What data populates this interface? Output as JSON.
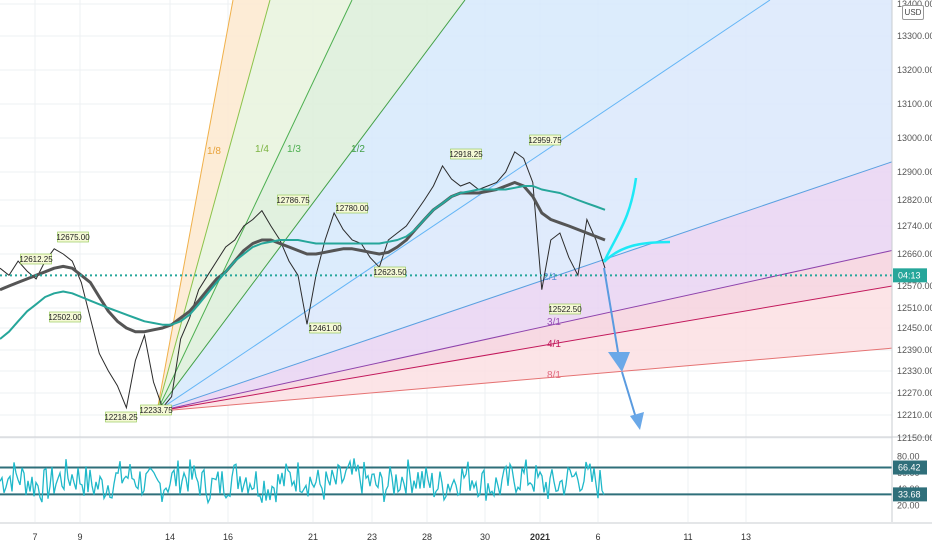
{
  "currency_badge": "USD",
  "chart_data": [
    {
      "type": "line",
      "title": "",
      "ylim": [
        12150,
        13400
      ],
      "y_ticks": [
        12150,
        12210,
        12270,
        12330,
        12390,
        12450,
        12510,
        12570,
        12660,
        12740,
        12820,
        12900,
        13000,
        13100,
        13200,
        13300,
        13400
      ],
      "y_tick_labels": [
        "12150.00",
        "12210.00",
        "12270.00",
        "12330.00",
        "12390.00",
        "12450.00",
        "12510.00",
        "12570.00",
        "12660.00",
        "12740.00",
        "12820.00",
        "12900.00",
        "13000.00",
        "13100.00",
        "13200.00",
        "13300.00",
        "13400.00"
      ],
      "x_tick_labels": [
        "7",
        "9",
        "14",
        "16",
        "21",
        "23",
        "28",
        "30",
        "2021",
        "6",
        "11",
        "13"
      ],
      "last_price_label": "04:13",
      "last_price_value": 12600,
      "grid": true,
      "price_annotations": [
        {
          "label": "12612.25",
          "value": 12612.25
        },
        {
          "label": "12675.00",
          "value": 12675.0
        },
        {
          "label": "12502.00",
          "value": 12502.0
        },
        {
          "label": "12218.25",
          "value": 12218.25
        },
        {
          "label": "12233.75",
          "value": 12233.75
        },
        {
          "label": "12786.75",
          "value": 12786.75
        },
        {
          "label": "12780.00",
          "value": 12780.0
        },
        {
          "label": "12461.00",
          "value": 12461.0
        },
        {
          "label": "12623.50",
          "value": 12623.5
        },
        {
          "label": "12918.25",
          "value": 12918.25
        },
        {
          "label": "12959.75",
          "value": 12959.75
        },
        {
          "label": "12522.50",
          "value": 12522.5
        }
      ],
      "gann_fan_labels": [
        "1/8",
        "1/4",
        "1/3",
        "1/2",
        "2/1",
        "3/1",
        "4/1",
        "8/1"
      ],
      "series": [
        {
          "values": [
            12620,
            12600,
            12640,
            12612,
            12590,
            12640,
            12675,
            12660,
            12640,
            12580,
            12480,
            12380,
            12330,
            12290,
            12230,
            12360,
            12430,
            12300,
            12230,
            12260,
            12420,
            12480,
            12560,
            12600,
            12640,
            12680,
            12700,
            12740,
            12760,
            12787,
            12740,
            12700,
            12640,
            12600,
            12461,
            12600,
            12700,
            12780,
            12730,
            12700,
            12690,
            12650,
            12623,
            12700,
            12720,
            12740,
            12780,
            12820,
            12860,
            12918,
            12880,
            12860,
            12870,
            12850,
            12860,
            12870,
            12900,
            12959,
            12940,
            12870,
            12560,
            12700,
            12720,
            12650,
            12600,
            12760,
            12700,
            12620
          ]
        },
        {
          "values": [
            12560,
            12570,
            12580,
            12590,
            12600,
            12610,
            12620,
            12625,
            12620,
            12600,
            12580,
            12540,
            12500,
            12470,
            12450,
            12440,
            12440,
            12445,
            12450,
            12460,
            12480,
            12500,
            12530,
            12560,
            12590,
            12610,
            12640,
            12670,
            12690,
            12700,
            12700,
            12690,
            12680,
            12670,
            12660,
            12660,
            12665,
            12670,
            12675,
            12675,
            12670,
            12665,
            12660,
            12665,
            12680,
            12700,
            12730,
            12760,
            12790,
            12810,
            12830,
            12840,
            12840,
            12840,
            12845,
            12850,
            12860,
            12870,
            12860,
            12830,
            12780,
            12760,
            12750,
            12740,
            12730,
            12720,
            12710,
            12700
          ]
        },
        {
          "values": [
            12420,
            12440,
            12470,
            12500,
            12520,
            12540,
            12550,
            12555,
            12550,
            12540,
            12530,
            12520,
            12510,
            12500,
            12490,
            12480,
            12470,
            12465,
            12460,
            12460,
            12470,
            12490,
            12520,
            12550,
            12580,
            12610,
            12640,
            12660,
            12680,
            12690,
            12695,
            12700,
            12700,
            12700,
            12695,
            12690,
            12690,
            12690,
            12690,
            12690,
            12690,
            12690,
            12690,
            12695,
            12700,
            12710,
            12730,
            12760,
            12790,
            12810,
            12830,
            12840,
            12845,
            12850,
            12850,
            12850,
            12850,
            12855,
            12860,
            12860,
            12850,
            12845,
            12840,
            12830,
            12820,
            12810,
            12800,
            12790
          ]
        }
      ]
    },
    {
      "type": "line",
      "title": "",
      "ylim": [
        0,
        100
      ],
      "y_ticks": [
        20,
        40,
        60,
        80
      ],
      "y_tick_labels": [
        "20.00",
        "40.00",
        "60.00",
        "80.00"
      ],
      "band_upper": 66.42,
      "band_lower": 33.68,
      "band_upper_label": "66.42",
      "band_lower_label": "33.68"
    }
  ]
}
